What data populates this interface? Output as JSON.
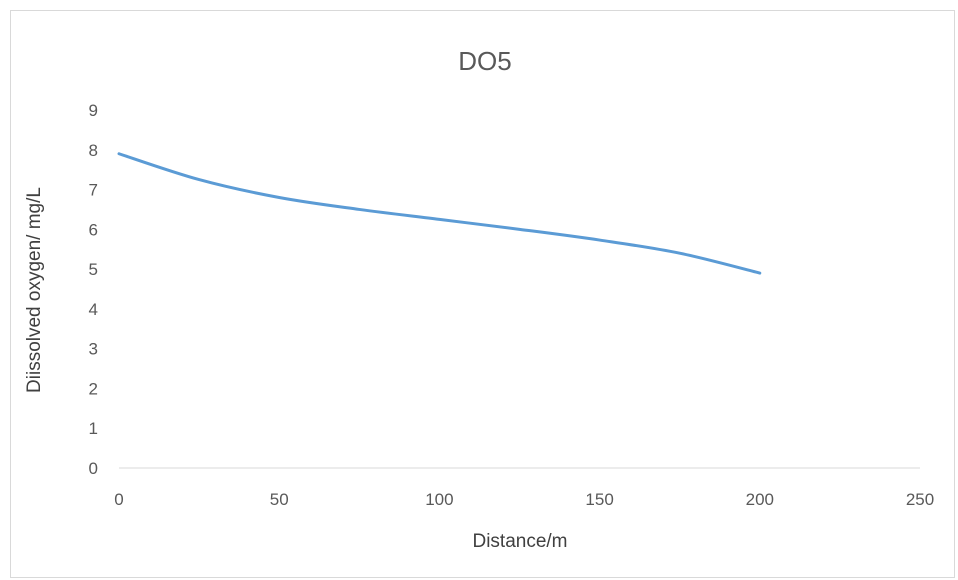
{
  "chart_data": {
    "type": "line",
    "title": "DO5",
    "xlabel": "Distance/m",
    "ylabel": "Diissolved oxygen/ mg/L",
    "xlim": [
      0,
      250
    ],
    "ylim": [
      0,
      9
    ],
    "xticks": [
      0,
      50,
      100,
      150,
      200,
      250
    ],
    "yticks": [
      0,
      1,
      2,
      3,
      4,
      5,
      6,
      7,
      8,
      9
    ],
    "grid": false,
    "legend": "none",
    "series": [
      {
        "color": "#5b9bd5",
        "smooth": true,
        "x": [
          0,
          25,
          50,
          75,
          100,
          125,
          150,
          175,
          200
        ],
        "y": [
          7.9,
          7.25,
          6.8,
          6.5,
          6.25,
          6.0,
          5.73,
          5.4,
          4.9
        ]
      }
    ]
  }
}
